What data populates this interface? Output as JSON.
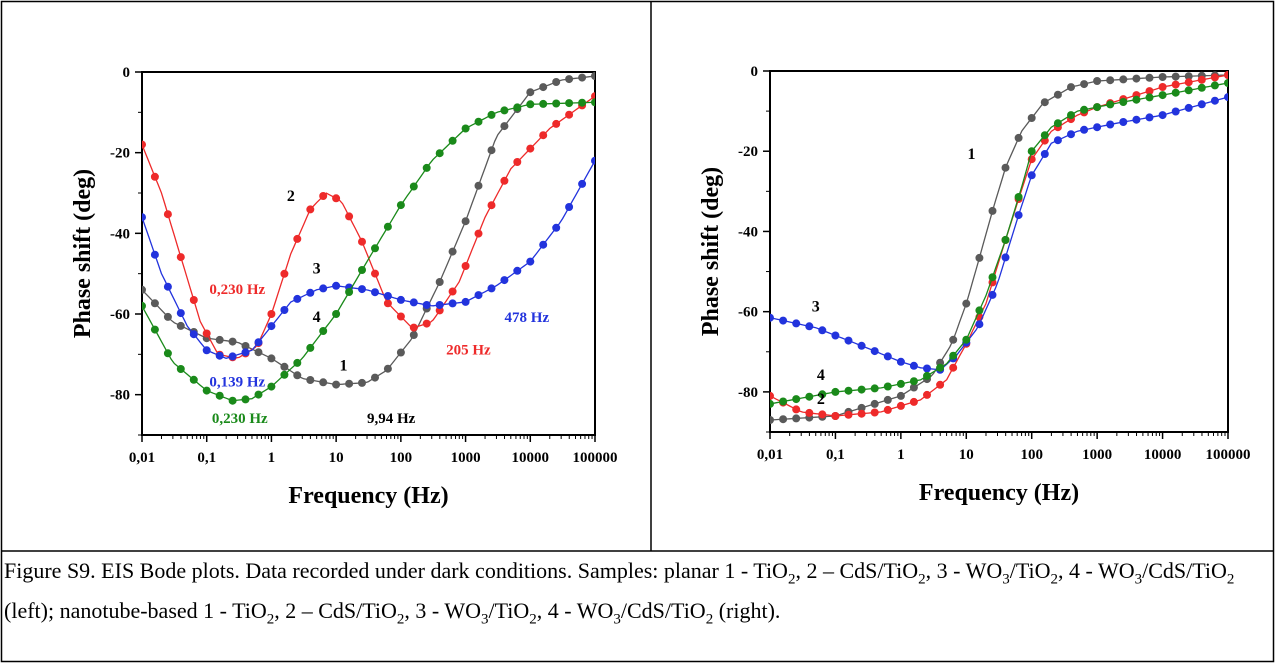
{
  "caption": {
    "parts": [
      "Figure S9. EIS Bode plots. Data recorded under dark conditions. Samples: planar 1 - TiO",
      "2",
      ", 2 – CdS/TiO",
      "2",
      ", 3 - WO",
      "3",
      "/TiO",
      "2",
      ", 4 - WO",
      "3",
      "/CdS/TiO",
      "2",
      " (left); nanotube-based 1 - TiO",
      "2",
      ", 2 – CdS/TiO",
      "2",
      ", 3 - WO",
      "3",
      "/TiO",
      "2",
      ", 4 - WO",
      "3",
      "/CdS/TiO",
      "2",
      " (right)."
    ]
  },
  "colors": {
    "1": "#5a5a5a",
    "2": "#ee2a2a",
    "3": "#2233dd",
    "4": "#1a8a1a"
  },
  "chart_data": [
    {
      "type": "line",
      "xscale": "log",
      "xlabel": "Frequency (Hz)",
      "ylabel": "Phase shift (deg)",
      "xlim": [
        0.01,
        100000
      ],
      "ylim": [
        -90,
        0
      ],
      "xticks": [
        0.01,
        0.1,
        1,
        10,
        100,
        1000,
        10000,
        100000
      ],
      "xtick_labels": [
        "0,01",
        "0,1",
        "1",
        "10",
        "100",
        "1000",
        "10000",
        "100000"
      ],
      "yticks": [
        0,
        -20,
        -40,
        -60,
        -80
      ],
      "ytick_labels": [
        "0",
        "-20",
        "-40",
        "-60",
        "-80"
      ],
      "series": [
        {
          "name": "1",
          "color_key": "1",
          "points": [
            [
              0.01,
              -54
            ],
            [
              0.03,
              -62
            ],
            [
              0.1,
              -66
            ],
            [
              0.3,
              -67
            ],
            [
              1,
              -71
            ],
            [
              3,
              -76
            ],
            [
              10,
              -77.5
            ],
            [
              30,
              -77
            ],
            [
              60,
              -74
            ],
            [
              150,
              -66
            ],
            [
              400,
              -52
            ],
            [
              1000,
              -37
            ],
            [
              3000,
              -16
            ],
            [
              10000,
              -5
            ],
            [
              30000,
              -2
            ],
            [
              100000,
              -1
            ]
          ]
        },
        {
          "name": "2",
          "color_key": "2",
          "points": [
            [
              0.01,
              -18
            ],
            [
              0.02,
              -30
            ],
            [
              0.04,
              -46
            ],
            [
              0.08,
              -62
            ],
            [
              0.15,
              -70
            ],
            [
              0.3,
              -71
            ],
            [
              0.6,
              -68
            ],
            [
              1,
              -60
            ],
            [
              2,
              -45
            ],
            [
              4,
              -34
            ],
            [
              7,
              -30
            ],
            [
              12,
              -32
            ],
            [
              25,
              -42
            ],
            [
              60,
              -57
            ],
            [
              150,
              -63.5
            ],
            [
              300,
              -62
            ],
            [
              800,
              -52
            ],
            [
              2000,
              -36
            ],
            [
              5000,
              -24
            ],
            [
              20000,
              -14
            ],
            [
              100000,
              -6
            ]
          ]
        },
        {
          "name": "3",
          "color_key": "3",
          "points": [
            [
              0.01,
              -36
            ],
            [
              0.02,
              -50
            ],
            [
              0.05,
              -63
            ],
            [
              0.1,
              -69
            ],
            [
              0.2,
              -71
            ],
            [
              0.5,
              -69
            ],
            [
              1,
              -63
            ],
            [
              2,
              -57
            ],
            [
              5,
              -54
            ],
            [
              10,
              -53
            ],
            [
              30,
              -54
            ],
            [
              100,
              -56.5
            ],
            [
              300,
              -58
            ],
            [
              1000,
              -57
            ],
            [
              3000,
              -53
            ],
            [
              10000,
              -47
            ],
            [
              30000,
              -37
            ],
            [
              100000,
              -22
            ]
          ]
        },
        {
          "name": "4",
          "color_key": "4",
          "points": [
            [
              0.01,
              -58
            ],
            [
              0.03,
              -72
            ],
            [
              0.1,
              -79
            ],
            [
              0.25,
              -81.5
            ],
            [
              0.5,
              -81
            ],
            [
              1,
              -78
            ],
            [
              3,
              -71
            ],
            [
              10,
              -60
            ],
            [
              30,
              -47
            ],
            [
              100,
              -33
            ],
            [
              300,
              -22
            ],
            [
              1000,
              -14
            ],
            [
              3000,
              -10
            ],
            [
              10000,
              -8
            ],
            [
              100000,
              -7.5
            ]
          ]
        }
      ],
      "curve_labels": [
        {
          "text": "1",
          "x": 13,
          "y": -74,
          "color_key": "text"
        },
        {
          "text": "2",
          "x": 2,
          "y": -32,
          "color_key": "text"
        },
        {
          "text": "3",
          "x": 5,
          "y": -50,
          "color_key": "text"
        },
        {
          "text": "4",
          "x": 5,
          "y": -62,
          "color_key": "text"
        }
      ],
      "annotations": [
        {
          "text": "0,230 Hz",
          "x": 0.11,
          "y": -55,
          "color_key": "2"
        },
        {
          "text": "0,139 Hz",
          "x": 0.11,
          "y": -78,
          "color_key": "3"
        },
        {
          "text": "0,230 Hz",
          "x": 0.12,
          "y": -87,
          "color_key": "4"
        },
        {
          "text": "9,94 Hz",
          "x": 30,
          "y": -87,
          "color_key": "text"
        },
        {
          "text": "205 Hz",
          "x": 500,
          "y": -70,
          "color_key": "2"
        },
        {
          "text": "478 Hz",
          "x": 4000,
          "y": -62,
          "color_key": "3"
        }
      ]
    },
    {
      "type": "line",
      "xscale": "log",
      "xlabel": "Frequency (Hz)",
      "ylabel": "Phase shift (deg)",
      "xlim": [
        0.01,
        100000
      ],
      "ylim": [
        -90,
        0
      ],
      "xticks": [
        0.01,
        0.1,
        1,
        10,
        100,
        1000,
        10000,
        100000
      ],
      "xtick_labels": [
        "0,01",
        "0,1",
        "1",
        "10",
        "100",
        "1000",
        "10000",
        "100000"
      ],
      "yticks": [
        0,
        -20,
        -40,
        -60,
        -80
      ],
      "ytick_labels": [
        "0",
        "-20",
        "-40",
        "-60",
        "-80"
      ],
      "series": [
        {
          "name": "1",
          "color_key": "1",
          "points": [
            [
              0.01,
              -87
            ],
            [
              0.1,
              -86
            ],
            [
              1,
              -81
            ],
            [
              3,
              -76
            ],
            [
              6,
              -68
            ],
            [
              10,
              -58
            ],
            [
              15,
              -48
            ],
            [
              25,
              -35
            ],
            [
              40,
              -24
            ],
            [
              70,
              -15
            ],
            [
              150,
              -8
            ],
            [
              400,
              -4
            ],
            [
              1000,
              -2.5
            ],
            [
              10000,
              -1.5
            ],
            [
              100000,
              -1
            ]
          ]
        },
        {
          "name": "2",
          "color_key": "2",
          "points": [
            [
              0.01,
              -81
            ],
            [
              0.03,
              -85
            ],
            [
              0.1,
              -86
            ],
            [
              0.5,
              -85
            ],
            [
              2,
              -82
            ],
            [
              5,
              -77
            ],
            [
              10,
              -68
            ],
            [
              20,
              -58
            ],
            [
              35,
              -45
            ],
            [
              60,
              -33
            ],
            [
              100,
              -22
            ],
            [
              200,
              -15
            ],
            [
              500,
              -11
            ],
            [
              1000,
              -9
            ],
            [
              10000,
              -4
            ],
            [
              100000,
              -1
            ]
          ]
        },
        {
          "name": "3",
          "color_key": "3",
          "points": [
            [
              0.01,
              -61.5
            ],
            [
              0.05,
              -64
            ],
            [
              0.3,
              -69
            ],
            [
              1,
              -72.5
            ],
            [
              2,
              -74
            ],
            [
              4,
              -74.5
            ],
            [
              7,
              -71
            ],
            [
              15,
              -64
            ],
            [
              30,
              -53
            ],
            [
              60,
              -37
            ],
            [
              100,
              -26
            ],
            [
              200,
              -18
            ],
            [
              500,
              -15
            ],
            [
              2000,
              -13
            ],
            [
              10000,
              -11
            ],
            [
              100000,
              -6.5
            ]
          ]
        },
        {
          "name": "4",
          "color_key": "4",
          "points": [
            [
              0.01,
              -83
            ],
            [
              0.1,
              -80
            ],
            [
              0.5,
              -79
            ],
            [
              2,
              -77
            ],
            [
              5,
              -73
            ],
            [
              10,
              -67
            ],
            [
              20,
              -56
            ],
            [
              40,
              -42
            ],
            [
              70,
              -29
            ],
            [
              100,
              -20
            ],
            [
              200,
              -14
            ],
            [
              500,
              -10
            ],
            [
              2000,
              -8
            ],
            [
              10000,
              -6
            ],
            [
              100000,
              -3
            ]
          ]
        }
      ],
      "curve_labels": [
        {
          "text": "1",
          "x": 12,
          "y": -22,
          "color_key": "text"
        },
        {
          "text": "2",
          "x": 0.06,
          "y": -83,
          "color_key": "text"
        },
        {
          "text": "3",
          "x": 0.05,
          "y": -60,
          "color_key": "text"
        },
        {
          "text": "4",
          "x": 0.06,
          "y": -77,
          "color_key": "text"
        }
      ],
      "annotations": []
    }
  ]
}
